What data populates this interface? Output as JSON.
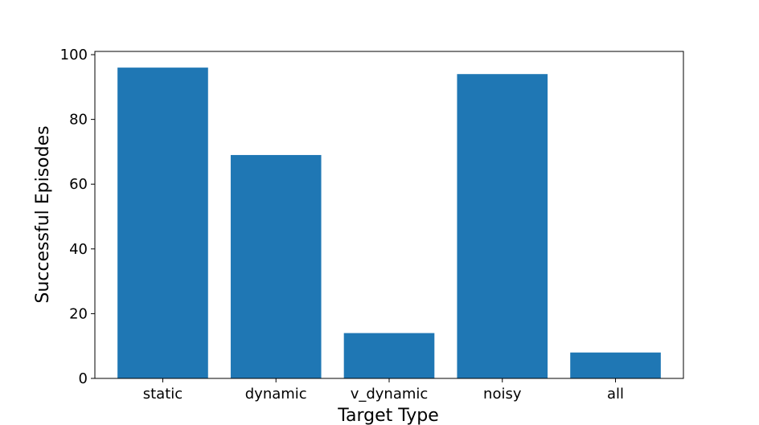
{
  "chart_data": {
    "type": "bar",
    "categories": [
      "static",
      "dynamic",
      "v_dynamic",
      "noisy",
      "all"
    ],
    "values": [
      96,
      69,
      14,
      94,
      8
    ],
    "title": "",
    "xlabel": "Target Type",
    "ylabel": "Successful Episodes",
    "ylim": [
      0,
      101
    ],
    "yticks": [
      0,
      20,
      40,
      60,
      80,
      100
    ],
    "grid": false,
    "legend": "none",
    "bar_color": "#1f77b4",
    "axis_color": "#000000"
  }
}
